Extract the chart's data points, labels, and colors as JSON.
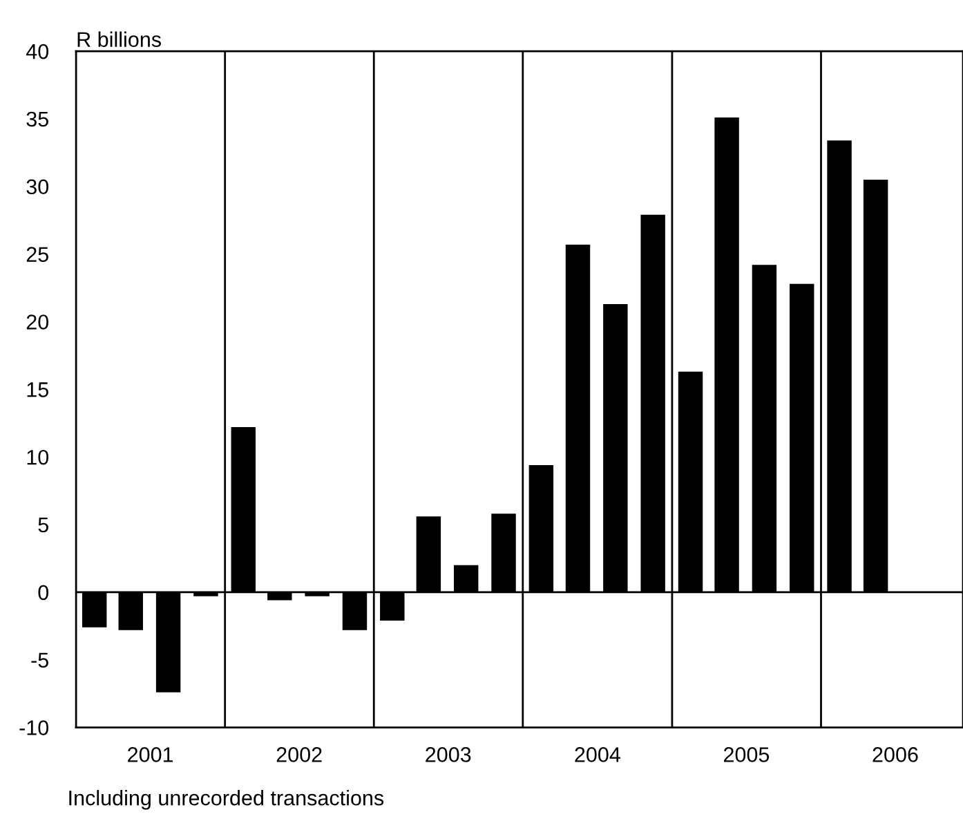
{
  "chart_data": {
    "type": "bar",
    "ylabel": "R billions",
    "x": [
      "2001-02-15",
      "2001-05-15",
      "2001-08-15",
      "2001-11-15",
      "2002-02-15",
      "2002-05-15",
      "2002-08-15",
      "2002-11-15",
      "2003-02-15",
      "2003-05-15",
      "2003-08-15",
      "2003-11-15",
      "2004-02-15",
      "2004-05-15",
      "2004-08-15",
      "2004-11-15",
      "2005-02-15",
      "2005-05-15",
      "2005-08-15",
      "2005-11-15",
      "2006-02-15",
      "2006-05-15"
    ],
    "values": [
      -2.6,
      -2.8,
      -7.4,
      -0.3,
      12.2,
      -0.6,
      -0.3,
      -2.8,
      -2.1,
      5.6,
      2.0,
      5.8,
      9.4,
      25.7,
      21.3,
      27.9,
      16.3,
      35.1,
      24.2,
      22.8,
      33.4,
      30.5
    ],
    "color": "#000000",
    "xlim": [
      "2001-01-01",
      "2006-12-15"
    ],
    "xticks": [
      {
        "value": "2001-07-02",
        "label": "2001"
      },
      {
        "value": "2002-07-02",
        "label": "2002"
      },
      {
        "value": "2003-07-02",
        "label": "2003"
      },
      {
        "value": "2004-07-02",
        "label": "2004"
      },
      {
        "value": "2005-07-02",
        "label": "2005"
      },
      {
        "value": "2006-07-02",
        "label": "2006"
      }
    ],
    "ylim": [
      -10,
      40
    ],
    "yticks": [
      -10,
      -5,
      0,
      5,
      10,
      15,
      20,
      25,
      30,
      35,
      40
    ],
    "ref_lines": [
      {
        "axis": "y",
        "value": 0
      },
      {
        "axis": "x",
        "value": "2002-01-01"
      },
      {
        "axis": "x",
        "value": "2003-01-01"
      },
      {
        "axis": "x",
        "value": "2004-01-01"
      },
      {
        "axis": "x",
        "value": "2005-01-01"
      },
      {
        "axis": "x",
        "value": "2006-01-01"
      }
    ],
    "annotations": [
      "Including unrecorded transactions"
    ],
    "grid": false,
    "legend": false
  }
}
